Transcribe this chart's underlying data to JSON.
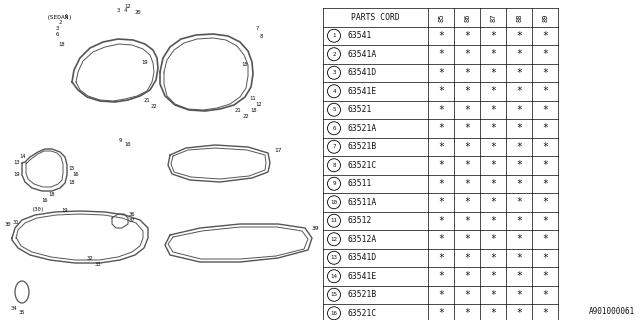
{
  "catalog_number": "A901000061",
  "table_header_years": [
    "85",
    "86",
    "87",
    "88",
    "89"
  ],
  "rows": [
    [
      "1",
      "63541"
    ],
    [
      "2",
      "63541A"
    ],
    [
      "3",
      "63541D"
    ],
    [
      "4",
      "63541E"
    ],
    [
      "5",
      "63521"
    ],
    [
      "6",
      "63521A"
    ],
    [
      "7",
      "63521B"
    ],
    [
      "8",
      "63521C"
    ],
    [
      "9",
      "63511"
    ],
    [
      "10",
      "63511A"
    ],
    [
      "11",
      "63512"
    ],
    [
      "12",
      "63512A"
    ],
    [
      "13",
      "63541D"
    ],
    [
      "14",
      "63541E"
    ],
    [
      "15",
      "63521B"
    ],
    [
      "16",
      "63521C"
    ]
  ],
  "bg_color": "#ffffff",
  "line_color": "#000000",
  "diagram_line_color": "#555555",
  "text_color": "#111111"
}
